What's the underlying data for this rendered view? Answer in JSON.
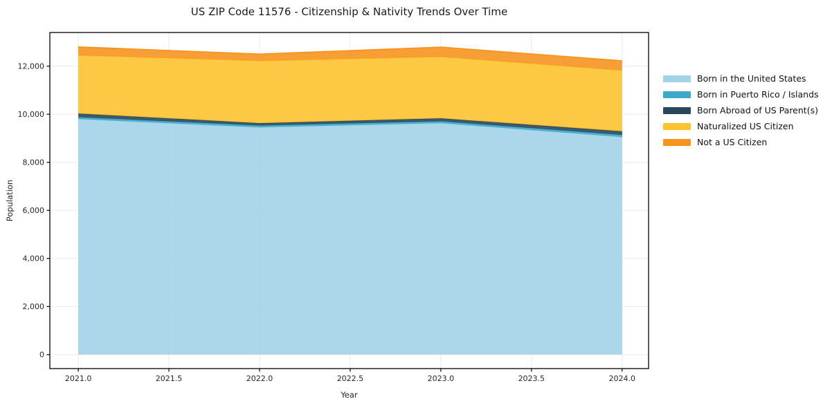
{
  "page": {
    "background": "#ffffff"
  },
  "chart_data": {
    "type": "area",
    "stacked": true,
    "title": "US ZIP Code 11576 - Citizenship & Nativity Trends Over Time",
    "xlabel": "Year",
    "ylabel": "Population",
    "x": [
      2021,
      2022,
      2023,
      2024
    ],
    "series": [
      {
        "name": "Born in the United States",
        "color": "#a3d3e9",
        "values": [
          9800,
          9450,
          9630,
          9050
        ]
      },
      {
        "name": "Born in Puerto Rico / Islands",
        "color": "#3da8c8",
        "values": [
          80,
          80,
          80,
          90
        ]
      },
      {
        "name": "Born Abroad of US Parent(s)",
        "color": "#29485c",
        "values": [
          150,
          100,
          120,
          150
        ]
      },
      {
        "name": "Naturalized US Citizen",
        "color": "#fdc330",
        "values": [
          2420,
          2590,
          2560,
          2530
        ]
      },
      {
        "name": "Not a US Citizen",
        "color": "#f79420",
        "values": [
          350,
          280,
          400,
          400
        ]
      }
    ],
    "stack_totals": [
      12800,
      12500,
      12790,
      12220
    ],
    "xtick_values": [
      2021.0,
      2021.5,
      2022.0,
      2022.5,
      2023.0,
      2023.5,
      2024.0
    ],
    "xtick_labels": [
      "2021.0",
      "2021.5",
      "2022.0",
      "2022.5",
      "2023.0",
      "2023.5",
      "2024.0"
    ],
    "ytick_values": [
      0,
      2000,
      4000,
      6000,
      8000,
      10000,
      12000
    ],
    "ytick_labels": [
      "0",
      "2,000",
      "4,000",
      "6,000",
      "8,000",
      "10,000",
      "12,000"
    ],
    "xlim": [
      2020.843,
      2024.146
    ],
    "ylim": [
      -580,
      13400
    ],
    "grid": true,
    "grid_color": "#e9e9e9",
    "axis_color": "#000000",
    "tick_label_color": "#262626",
    "legend_position": "right-outside"
  }
}
